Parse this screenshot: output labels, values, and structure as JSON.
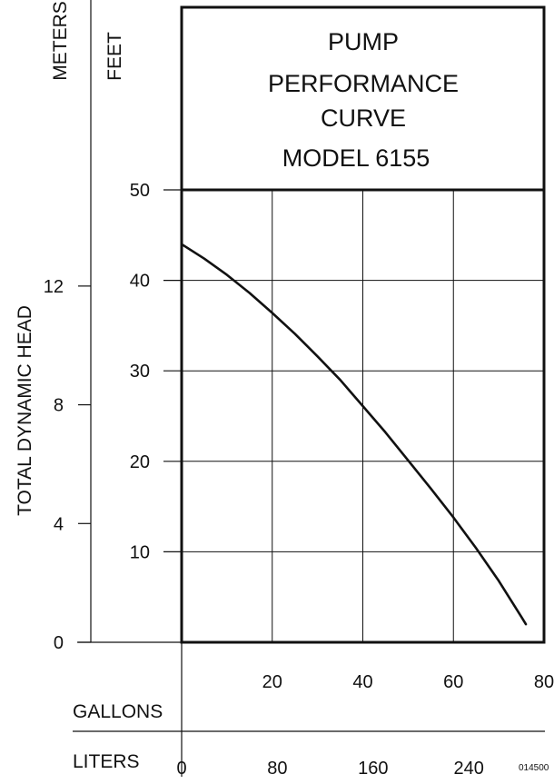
{
  "chart_data": {
    "type": "line",
    "title_lines": [
      "PUMP",
      "PERFORMANCE",
      "CURVE",
      "MODEL 6155"
    ],
    "ylabel": "TOTAL DYNAMIC HEAD",
    "y_units": {
      "meters": "METERS",
      "feet": "FEET"
    },
    "x_units": {
      "gallons": "GALLONS",
      "liters": "LITERS"
    },
    "feet_ticks": [
      "10",
      "20",
      "30",
      "40",
      "50"
    ],
    "meter_ticks": [
      "0",
      "4",
      "8",
      "12"
    ],
    "gallon_ticks": [
      "20",
      "40",
      "60",
      "80"
    ],
    "liter_ticks": [
      "0",
      "80",
      "160",
      "240"
    ],
    "xlim": [
      0,
      80
    ],
    "ylim": [
      0,
      50
    ],
    "grid": true,
    "series": [
      {
        "x": [
          0,
          5,
          10,
          15,
          20,
          25,
          30,
          35,
          40,
          45,
          50,
          55,
          60,
          65,
          70,
          75,
          76
        ],
        "y": [
          44,
          42.4,
          40.6,
          38.6,
          36.4,
          34.1,
          31.6,
          29,
          26.1,
          23.2,
          20.1,
          17,
          13.8,
          10.4,
          6.8,
          2.8,
          2
        ]
      }
    ],
    "code": "014500"
  }
}
